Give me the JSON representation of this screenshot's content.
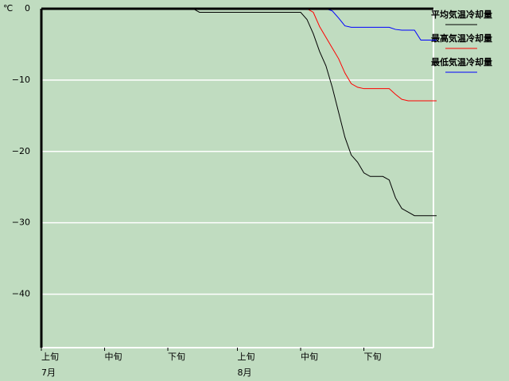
{
  "chart_data": {
    "type": "line",
    "y_unit": "℃",
    "x": [
      0,
      24,
      25,
      41,
      42,
      43,
      44,
      45,
      46,
      47,
      48,
      49,
      50,
      51,
      52,
      53,
      54,
      55,
      56,
      57,
      58,
      59,
      60,
      62.5
    ],
    "series": [
      {
        "name": "平均気温冷却量",
        "color": "#000000",
        "values": [
          0,
          0,
          -0.5,
          -0.5,
          -1.5,
          -3.5,
          -6,
          -8,
          -11,
          -14.5,
          -18,
          -20.5,
          -21.5,
          -23,
          -23.5,
          -23.5,
          -23.5,
          -24,
          -26.5,
          -28,
          -28.5,
          -29,
          -29,
          -29
        ]
      },
      {
        "name": "最高気温冷却量",
        "color": "#ff0000",
        "values": [
          0,
          0,
          0,
          0,
          0,
          -0.5,
          -2.5,
          -4,
          -5.5,
          -7,
          -9,
          -10.5,
          -11,
          -11.2,
          -11.2,
          -11.2,
          -11.2,
          -11.2,
          -12,
          -12.7,
          -12.9,
          -12.9,
          -12.9,
          -12.9
        ]
      },
      {
        "name": "最低気温冷却量",
        "color": "#0000ff",
        "values": [
          0,
          0,
          0,
          0,
          0,
          0,
          0,
          0,
          -0.3,
          -1.3,
          -2.4,
          -2.6,
          -2.6,
          -2.6,
          -2.6,
          -2.6,
          -2.6,
          -2.6,
          -2.9,
          -3,
          -3,
          -3,
          -4.4,
          -4.4
        ]
      }
    ],
    "xlim": [
      0,
      62
    ],
    "xticks": [
      {
        "value": 0,
        "label": "上旬"
      },
      {
        "value": 10,
        "label": "中旬"
      },
      {
        "value": 20,
        "label": "下旬"
      },
      {
        "value": 31,
        "label": "上旬"
      },
      {
        "value": 41,
        "label": "中旬"
      },
      {
        "value": 51,
        "label": "下旬"
      }
    ],
    "months": [
      {
        "value": 0,
        "label": "7月"
      },
      {
        "value": 31,
        "label": "8月"
      }
    ],
    "ylim": [
      -47.5,
      0
    ],
    "yticks": [
      0,
      {
        "value": -10,
        "label": "−10"
      },
      {
        "value": -20,
        "label": "−20"
      },
      {
        "value": -30,
        "label": "−30"
      },
      {
        "value": -40,
        "label": "−40"
      }
    ],
    "grid": true
  }
}
